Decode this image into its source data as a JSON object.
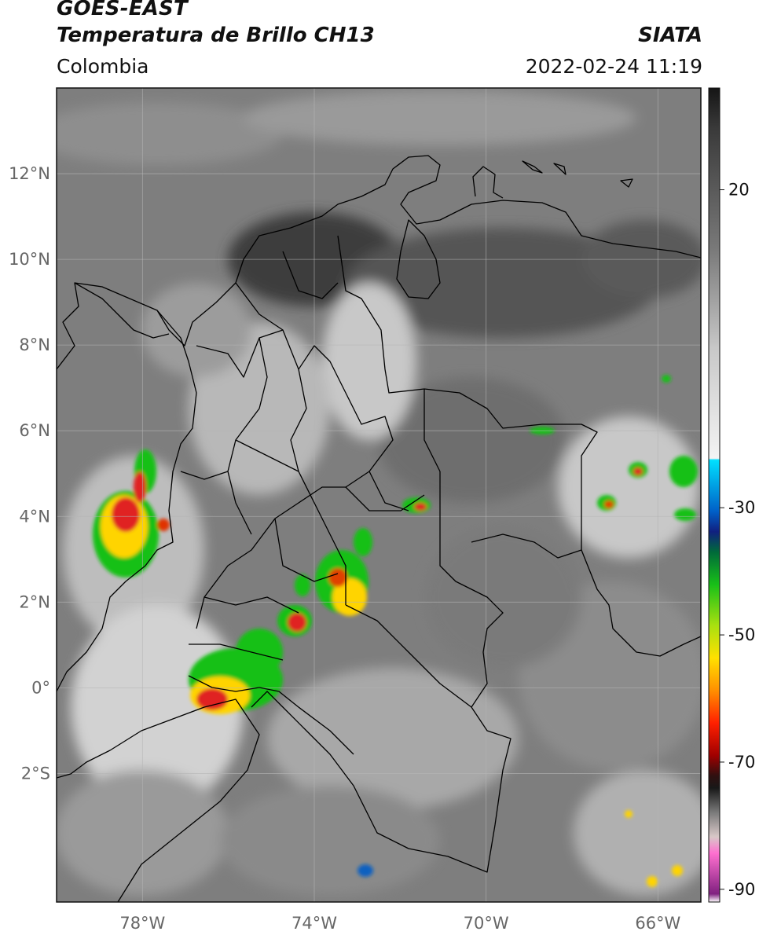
{
  "header": {
    "satellite": "GOES-EAST",
    "product": "Temperatura de Brillo CH13",
    "region": "Colombia",
    "source": "SIATA",
    "datetime": "2022-02-24 11:19"
  },
  "map": {
    "lat_labels": [
      "12°N",
      "10°N",
      "8°N",
      "6°N",
      "4°N",
      "2°N",
      "0°",
      "2°S"
    ],
    "lon_labels": [
      "78°W",
      "74°W",
      "70°W",
      "66°W"
    ],
    "lat_values": [
      12,
      10,
      8,
      6,
      4,
      2,
      0,
      -2
    ],
    "lon_values": [
      -78,
      -74,
      -70,
      -66
    ],
    "lon_range": [
      -80,
      -65
    ],
    "lat_range": [
      -5,
      14
    ]
  },
  "colorbar": {
    "ticks": [
      "20",
      "-30",
      "-50",
      "-70",
      "-90"
    ],
    "tick_values": [
      20,
      -30,
      -50,
      -70,
      -90
    ],
    "range": [
      -92,
      36
    ]
  },
  "colors": {
    "cold_cloud_peak": "#e02020",
    "cold_cloud_mid": "#ffd400",
    "cold_cloud_low": "#16c016",
    "cold_cloud_edge": "#1060c0",
    "background_gray": "#8a8a8a"
  }
}
